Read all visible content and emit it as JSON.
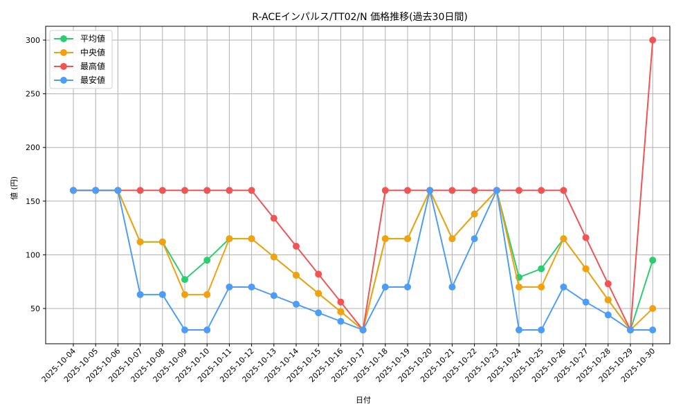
{
  "chart_data": {
    "type": "line",
    "title": "R-ACEインパルス/TT02/N 価格推移(過去30日間)",
    "xlabel": "日付",
    "ylabel": "値 (円)",
    "ylim": [
      17,
      313
    ],
    "yticks": [
      50,
      100,
      150,
      200,
      250,
      300
    ],
    "grid": true,
    "legend_position": "upper left",
    "categories": [
      "2025-10-04",
      "2025-10-05",
      "2025-10-06",
      "2025-10-07",
      "2025-10-08",
      "2025-10-09",
      "2025-10-10",
      "2025-10-11",
      "2025-10-12",
      "2025-10-13",
      "2025-10-14",
      "2025-10-15",
      "2025-10-16",
      "2025-10-17",
      "2025-10-18",
      "2025-10-19",
      "2025-10-20",
      "2025-10-21",
      "2025-10-22",
      "2025-10-23",
      "2025-10-24",
      "2025-10-25",
      "2025-10-26",
      "2025-10-27",
      "2025-10-28",
      "2025-10-29",
      "2025-10-30"
    ],
    "series": [
      {
        "name": "平均値",
        "color": "#2ecc71",
        "values": [
          160,
          160,
          160,
          112,
          112,
          77,
          95,
          115,
          115,
          98,
          81,
          64,
          47,
          30,
          115,
          115,
          160,
          115,
          138,
          160,
          79,
          87,
          115,
          87,
          58,
          30,
          95
        ]
      },
      {
        "name": "中央値",
        "color": "#f1a20e",
        "values": [
          160,
          160,
          160,
          112,
          112,
          63,
          63,
          115,
          115,
          98,
          81,
          64,
          47,
          30,
          115,
          115,
          160,
          115,
          138,
          160,
          70,
          70,
          115,
          87,
          58,
          30,
          50
        ]
      },
      {
        "name": "最高値",
        "color": "#f05454",
        "values": [
          160,
          160,
          160,
          160,
          160,
          160,
          160,
          160,
          160,
          134,
          108,
          82,
          56,
          30,
          160,
          160,
          160,
          160,
          160,
          160,
          160,
          160,
          160,
          116,
          73,
          30,
          300
        ]
      },
      {
        "name": "最安値",
        "color": "#4d9df7",
        "values": [
          160,
          160,
          160,
          63,
          63,
          30,
          30,
          70,
          70,
          62,
          54,
          46,
          38,
          30,
          70,
          70,
          160,
          70,
          115,
          160,
          30,
          30,
          70,
          56,
          44,
          30,
          30
        ]
      }
    ]
  }
}
